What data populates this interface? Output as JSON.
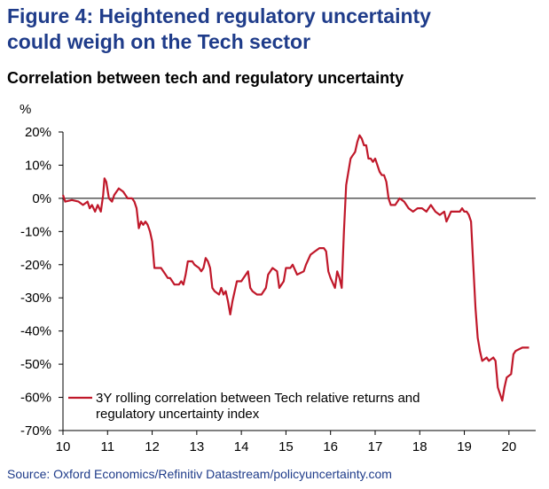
{
  "figure_title_line1": "Figure 4: Heightened regulatory uncertainty",
  "figure_title_line2": "could weigh on the Tech sector",
  "source": "Source: Oxford Economics/Refinitiv Datastream/policyuncertainty.com",
  "chart_data": {
    "type": "line",
    "title": "Correlation between tech and regulatory uncertainty",
    "ylabel": "%",
    "xlabel": "",
    "xlim": [
      2010,
      2020.6
    ],
    "ylim": [
      -70,
      20
    ],
    "x_ticks": [
      10,
      11,
      12,
      13,
      14,
      15,
      16,
      17,
      18,
      19,
      20
    ],
    "y_ticks": [
      20,
      10,
      0,
      -10,
      -20,
      -30,
      -40,
      -50,
      -60,
      -70
    ],
    "y_tick_labels": [
      "20%",
      "10%",
      "0%",
      "-10%",
      "-20%",
      "-30%",
      "-40%",
      "-50%",
      "-60%",
      "-70%"
    ],
    "legend": {
      "position": "bottom-left",
      "line1": "3Y rolling correlation between Tech relative returns and",
      "line2": "regulatory uncertainty index"
    },
    "series": [
      {
        "name": "3Y rolling correlation between Tech relative returns and regulatory uncertainty index",
        "color": "#c0182a",
        "points": [
          [
            2010.0,
            1
          ],
          [
            2010.05,
            -1
          ],
          [
            2010.2,
            -0.5
          ],
          [
            2010.35,
            -1
          ],
          [
            2010.45,
            -2
          ],
          [
            2010.55,
            -1
          ],
          [
            2010.6,
            -3
          ],
          [
            2010.65,
            -2
          ],
          [
            2010.72,
            -4
          ],
          [
            2010.78,
            -2
          ],
          [
            2010.85,
            -4
          ],
          [
            2010.9,
            1
          ],
          [
            2010.93,
            6
          ],
          [
            2010.97,
            5
          ],
          [
            2011.03,
            0
          ],
          [
            2011.1,
            -1
          ],
          [
            2011.15,
            1
          ],
          [
            2011.25,
            3
          ],
          [
            2011.35,
            2
          ],
          [
            2011.45,
            0
          ],
          [
            2011.55,
            0
          ],
          [
            2011.6,
            -1
          ],
          [
            2011.65,
            -3
          ],
          [
            2011.7,
            -9
          ],
          [
            2011.75,
            -7
          ],
          [
            2011.8,
            -8
          ],
          [
            2011.85,
            -7
          ],
          [
            2011.9,
            -8
          ],
          [
            2011.95,
            -10
          ],
          [
            2012.0,
            -13
          ],
          [
            2012.05,
            -21
          ],
          [
            2012.2,
            -21
          ],
          [
            2012.3,
            -23
          ],
          [
            2012.35,
            -24
          ],
          [
            2012.4,
            -24
          ],
          [
            2012.5,
            -26
          ],
          [
            2012.6,
            -26
          ],
          [
            2012.65,
            -25
          ],
          [
            2012.7,
            -26
          ],
          [
            2012.75,
            -23
          ],
          [
            2012.8,
            -19
          ],
          [
            2012.9,
            -19
          ],
          [
            2012.95,
            -20
          ],
          [
            2013.05,
            -21
          ],
          [
            2013.1,
            -22
          ],
          [
            2013.15,
            -21
          ],
          [
            2013.2,
            -18
          ],
          [
            2013.25,
            -19
          ],
          [
            2013.3,
            -21
          ],
          [
            2013.35,
            -27
          ],
          [
            2013.4,
            -28
          ],
          [
            2013.5,
            -29
          ],
          [
            2013.55,
            -27
          ],
          [
            2013.6,
            -29
          ],
          [
            2013.65,
            -28
          ],
          [
            2013.7,
            -31
          ],
          [
            2013.75,
            -35
          ],
          [
            2013.8,
            -31
          ],
          [
            2013.85,
            -28
          ],
          [
            2013.9,
            -25
          ],
          [
            2014.0,
            -25
          ],
          [
            2014.05,
            -24
          ],
          [
            2014.1,
            -23
          ],
          [
            2014.15,
            -22
          ],
          [
            2014.2,
            -27
          ],
          [
            2014.25,
            -28
          ],
          [
            2014.35,
            -29
          ],
          [
            2014.45,
            -29
          ],
          [
            2014.55,
            -27
          ],
          [
            2014.6,
            -23
          ],
          [
            2014.7,
            -21
          ],
          [
            2014.8,
            -22
          ],
          [
            2014.85,
            -27
          ],
          [
            2014.95,
            -25
          ],
          [
            2015.0,
            -21
          ],
          [
            2015.1,
            -21
          ],
          [
            2015.15,
            -20
          ],
          [
            2015.25,
            -23
          ],
          [
            2015.4,
            -22
          ],
          [
            2015.45,
            -20
          ],
          [
            2015.55,
            -17
          ],
          [
            2015.65,
            -16
          ],
          [
            2015.75,
            -15
          ],
          [
            2015.85,
            -15
          ],
          [
            2015.9,
            -16
          ],
          [
            2015.95,
            -22
          ],
          [
            2016.0,
            -24
          ],
          [
            2016.1,
            -27
          ],
          [
            2016.15,
            -22
          ],
          [
            2016.2,
            -24
          ],
          [
            2016.25,
            -27
          ],
          [
            2016.3,
            -10
          ],
          [
            2016.35,
            4
          ],
          [
            2016.4,
            8
          ],
          [
            2016.45,
            12
          ],
          [
            2016.5,
            13
          ],
          [
            2016.55,
            14
          ],
          [
            2016.6,
            17
          ],
          [
            2016.65,
            19
          ],
          [
            2016.7,
            18
          ],
          [
            2016.75,
            16
          ],
          [
            2016.8,
            16
          ],
          [
            2016.85,
            12
          ],
          [
            2016.9,
            12
          ],
          [
            2016.95,
            11
          ],
          [
            2017.0,
            12
          ],
          [
            2017.05,
            10
          ],
          [
            2017.1,
            8
          ],
          [
            2017.15,
            7
          ],
          [
            2017.2,
            7
          ],
          [
            2017.25,
            5
          ],
          [
            2017.3,
            0
          ],
          [
            2017.35,
            -2
          ],
          [
            2017.45,
            -2
          ],
          [
            2017.55,
            0
          ],
          [
            2017.65,
            -1
          ],
          [
            2017.75,
            -3
          ],
          [
            2017.85,
            -4
          ],
          [
            2017.95,
            -3
          ],
          [
            2018.05,
            -3
          ],
          [
            2018.15,
            -4
          ],
          [
            2018.25,
            -2
          ],
          [
            2018.35,
            -4
          ],
          [
            2018.45,
            -5
          ],
          [
            2018.55,
            -4
          ],
          [
            2018.6,
            -7
          ],
          [
            2018.7,
            -4
          ],
          [
            2018.8,
            -4
          ],
          [
            2018.9,
            -4
          ],
          [
            2018.95,
            -3
          ],
          [
            2019.0,
            -4
          ],
          [
            2019.05,
            -4
          ],
          [
            2019.1,
            -5
          ],
          [
            2019.15,
            -7
          ],
          [
            2019.2,
            -20
          ],
          [
            2019.25,
            -33
          ],
          [
            2019.3,
            -42
          ],
          [
            2019.35,
            -46
          ],
          [
            2019.4,
            -49
          ],
          [
            2019.5,
            -48
          ],
          [
            2019.55,
            -49
          ],
          [
            2019.65,
            -48
          ],
          [
            2019.7,
            -49
          ],
          [
            2019.75,
            -57
          ],
          [
            2019.8,
            -59
          ],
          [
            2019.85,
            -61
          ],
          [
            2019.9,
            -57
          ],
          [
            2019.95,
            -54
          ],
          [
            2020.05,
            -53
          ],
          [
            2020.1,
            -47
          ],
          [
            2020.15,
            -46
          ],
          [
            2020.3,
            -45
          ],
          [
            2020.45,
            -45
          ]
        ]
      }
    ]
  }
}
